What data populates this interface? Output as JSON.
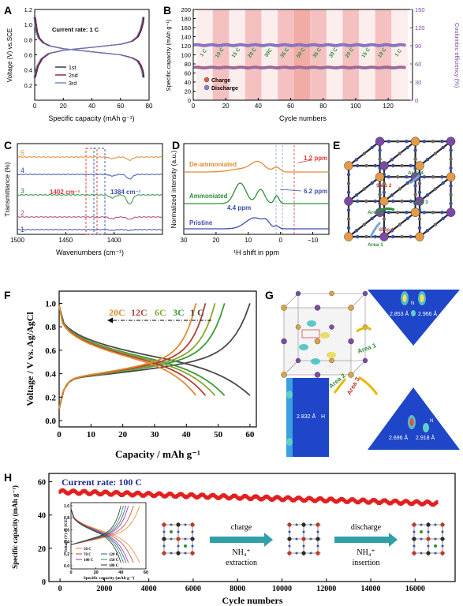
{
  "panels": {
    "A": {
      "label": "A",
      "annotation": "Current rate: 1 C",
      "xlabel": "Specific capacity (mAh g⁻¹)",
      "ylabel": "Voltage (V) vs.SCE",
      "legend": [
        "1st",
        "2nd",
        "3rd"
      ]
    },
    "B": {
      "label": "B",
      "xlabel": "Cycle numbers",
      "ylabel_left": "Specific capacity (mAh g⁻¹)",
      "ylabel_right": "Coulombic efficiency (%)",
      "legend": [
        "Charge",
        "Discharge"
      ],
      "rate_labels": [
        "1 C",
        "10 C",
        "15 C",
        "20 C",
        "30C",
        "35 C",
        "50 C",
        "35 C",
        "30 C",
        "20 C",
        "15 C",
        "10 C",
        "1 C"
      ]
    },
    "C": {
      "label": "C",
      "xlabel": "Wavenumbers (cm⁻¹)",
      "ylabel": "Transmittance (%)",
      "curve_labels": [
        "5",
        "4",
        "3",
        "2",
        "1"
      ],
      "annot_left": "1402 cm⁻¹",
      "annot_right": "1384 cm⁻¹"
    },
    "D": {
      "label": "D",
      "xlabel": "¹H shift in ppm",
      "ylabel": "Normalized intensity (a.u.)",
      "curve_labels": [
        "De-ammoniated",
        "Ammoniated",
        "Pristine"
      ],
      "peaks": [
        "1.2 ppm",
        "6.2 ppm",
        "4.4 ppm"
      ]
    },
    "E": {
      "label": "E",
      "sites": [
        "Area 4",
        "Area 3",
        "Area 2",
        "Area 1"
      ],
      "steps": [
        "Step 2",
        "Step 1"
      ]
    },
    "F": {
      "label": "F",
      "xlabel": "Capacity / mAh g⁻¹",
      "ylabel": "Voltage / V vs. Ag/AgCl",
      "rates": [
        "20C",
        "12C",
        "6C",
        "3C",
        "1 C"
      ]
    },
    "G": {
      "label": "G",
      "areas": [
        "Area 1",
        "Area 2",
        "Area 3"
      ],
      "distances": {
        "tri1": [
          "2.853 Å",
          "2.966 Å"
        ],
        "rect": "2.832 Å",
        "rect_atom": "H",
        "tri2": [
          "2.696 Å",
          "2.918 Å"
        ],
        "top_atom": "N",
        "side_atom": "N"
      }
    },
    "H": {
      "label": "H",
      "annotation": "Current rate: 100 C",
      "xlabel": "Cycle numbers",
      "ylabel": "Specific capacity (mAh g⁻¹)",
      "inset": {
        "xlabel": "Specific capacity (mAh g⁻¹)",
        "ylabel": "Voltage (V) vs. SCE",
        "legend": [
          "50 C",
          "70 C",
          "100 C",
          "120 C",
          "150 C",
          "180 C"
        ]
      },
      "arrow1": {
        "top": "charge",
        "ion": "NH₄⁺",
        "bottom": "extraction"
      },
      "arrow2": {
        "top": "discharge",
        "ion": "NH₄⁺",
        "bottom": "insertion"
      }
    }
  },
  "chart_data": [
    {
      "id": "A",
      "type": "line",
      "xlim": [
        0,
        80
      ],
      "ylim": [
        0.0,
        1.2
      ],
      "xticks": [
        0,
        20,
        40,
        60,
        80
      ],
      "yticks": [
        0.2,
        0.4,
        0.6,
        0.8,
        1.0,
        1.2
      ],
      "series": [
        {
          "name": "1st",
          "branch": "charge",
          "x": [
            0,
            2,
            5,
            10,
            20,
            30,
            40,
            50,
            60,
            68,
            72,
            74,
            75.5,
            76
          ],
          "y": [
            0.3,
            0.45,
            0.55,
            0.62,
            0.66,
            0.68,
            0.7,
            0.72,
            0.74,
            0.78,
            0.84,
            0.92,
            1.02,
            1.1
          ]
        },
        {
          "name": "1st",
          "branch": "discharge",
          "x": [
            0,
            0.5,
            1.5,
            3,
            6,
            10,
            20,
            30,
            40,
            50,
            60,
            68,
            72,
            74,
            75.5,
            76
          ],
          "y": [
            1.1,
            1.02,
            0.9,
            0.82,
            0.76,
            0.72,
            0.68,
            0.66,
            0.64,
            0.62,
            0.6,
            0.56,
            0.52,
            0.46,
            0.38,
            0.3
          ]
        }
      ],
      "colors": [
        "#2e2e2e",
        "#8b1a3a",
        "#6a7fc4"
      ]
    },
    {
      "id": "B",
      "type": "scatter",
      "xlim": [
        0,
        135
      ],
      "ylim_left": [
        0,
        200
      ],
      "ylim_right": [
        0,
        150
      ],
      "xticks": [
        0,
        20,
        40,
        60,
        80,
        100,
        120
      ],
      "yticks_left": [
        0,
        20,
        40,
        60,
        80,
        100,
        120,
        140,
        160,
        180,
        200
      ],
      "yticks_right": [
        0,
        30,
        60,
        90,
        120,
        150
      ],
      "charge_capacity_mean": 72,
      "discharge_capacity_mean": 72,
      "coulombic_efficiency_mean": 99,
      "cycles": 130
    },
    {
      "id": "C",
      "type": "line",
      "xlim": [
        1500,
        1350
      ],
      "xticks": [
        1500,
        1450,
        1400
      ],
      "dips_cm": [
        1402,
        1384
      ]
    },
    {
      "id": "D",
      "type": "line",
      "xlim": [
        30,
        -15
      ],
      "xticks": [
        30,
        20,
        10,
        0,
        -10
      ],
      "peaks_ppm": [
        1.2,
        6.2,
        4.4
      ]
    },
    {
      "id": "F",
      "type": "line",
      "xlim": [
        0,
        62
      ],
      "ylim": [
        0.0,
        1.05
      ],
      "xticks": [
        0,
        10,
        20,
        30,
        40,
        50,
        60
      ],
      "yticks": [
        0.0,
        0.2,
        0.4,
        0.6,
        0.8,
        1.0
      ],
      "series": [
        {
          "name": "1 C",
          "capacity": 60,
          "color": "#4a4a4a"
        },
        {
          "name": "3C",
          "capacity": 52,
          "color": "#3b9a3b"
        },
        {
          "name": "6C",
          "capacity": 49,
          "color": "#8aa630"
        },
        {
          "name": "12C",
          "capacity": 46,
          "color": "#b0413e"
        },
        {
          "name": "20C",
          "capacity": 43,
          "color": "#e08a30"
        }
      ]
    },
    {
      "id": "H",
      "type": "scatter",
      "xlim": [
        -500,
        17800
      ],
      "ylim": [
        0,
        65
      ],
      "xticks": [
        0,
        2000,
        4000,
        6000,
        8000,
        10000,
        12000,
        14000,
        16000
      ],
      "yticks": [
        0,
        20,
        40,
        60
      ],
      "capacity_start": 54,
      "capacity_end": 47,
      "cycles_end": 17000,
      "inset": {
        "xticks": [
          0,
          20,
          40,
          60
        ],
        "yticks": [
          0.0,
          0.2,
          0.4,
          0.6,
          0.8,
          1.0
        ],
        "series": [
          {
            "name": "50 C",
            "capacity": 55
          },
          {
            "name": "70 C",
            "capacity": 50
          },
          {
            "name": "100 C",
            "capacity": 46
          },
          {
            "name": "120 C",
            "capacity": 44
          },
          {
            "name": "150 C",
            "capacity": 42
          },
          {
            "name": "180 C",
            "capacity": 40
          }
        ]
      }
    }
  ]
}
